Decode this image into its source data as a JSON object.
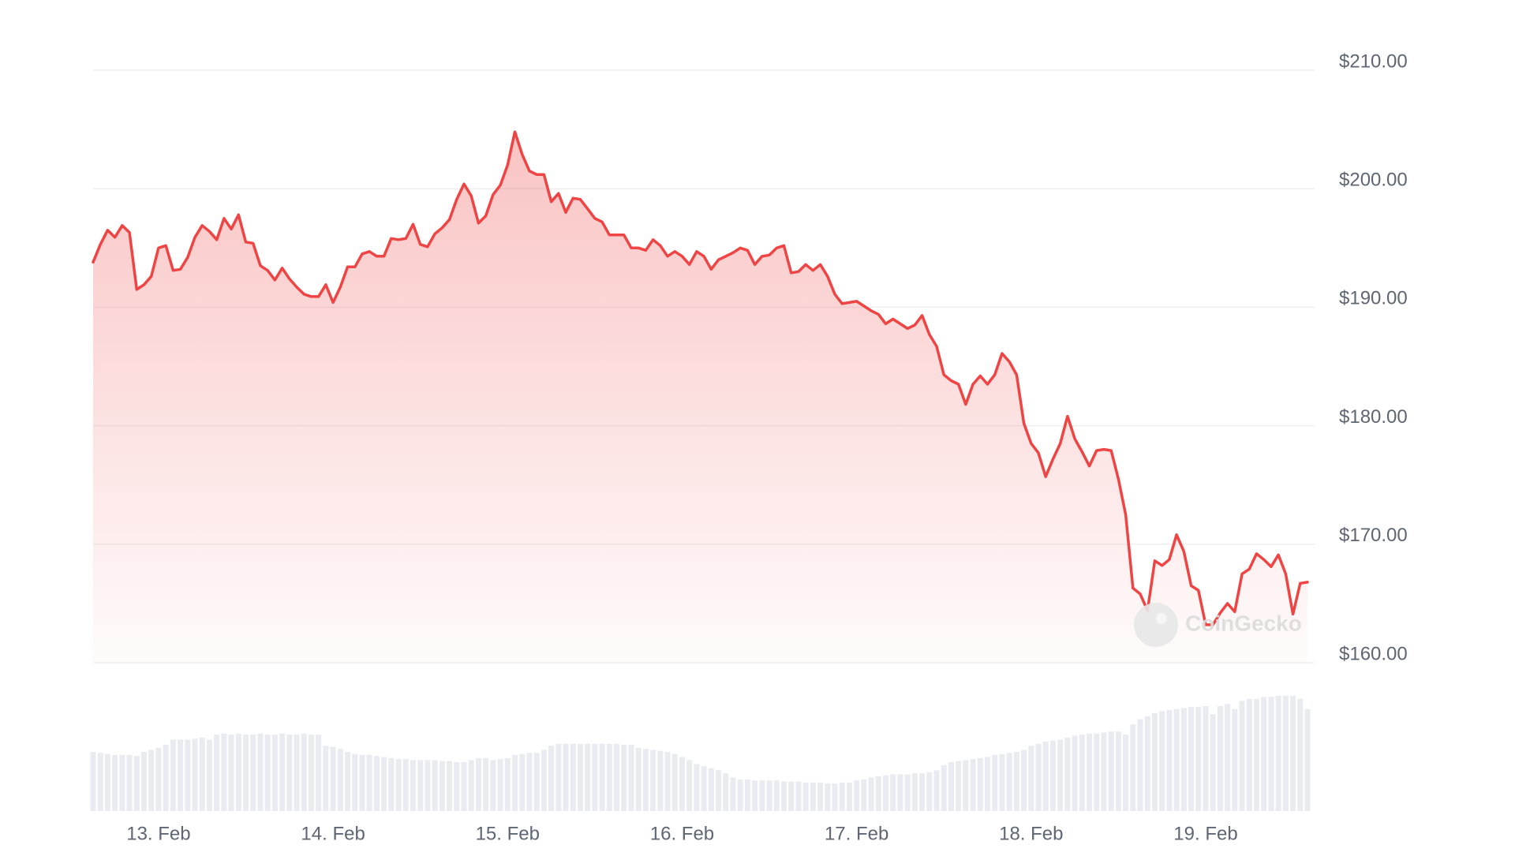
{
  "chart_data": {
    "type": "area",
    "watermark": "CoinGecko",
    "color": "#ef4444",
    "grid": true,
    "xlim": [
      -9,
      158
    ],
    "xticks": [
      {
        "value": 0,
        "label": "13. Feb"
      },
      {
        "value": 24,
        "label": "14. Feb"
      },
      {
        "value": 48,
        "label": "15. Feb"
      },
      {
        "value": 72,
        "label": "16. Feb"
      },
      {
        "value": 96,
        "label": "17. Feb"
      },
      {
        "value": 120,
        "label": "18. Feb"
      },
      {
        "value": 144,
        "label": "19. Feb"
      }
    ],
    "ylim": [
      160,
      210
    ],
    "yticks": [
      {
        "value": 160,
        "label": "$160.00"
      },
      {
        "value": 170,
        "label": "$170.00"
      },
      {
        "value": 180,
        "label": "$180.00"
      },
      {
        "value": 190,
        "label": "$190.00"
      },
      {
        "value": 200,
        "label": "$200.00"
      },
      {
        "value": 210,
        "label": "$210.00"
      }
    ],
    "x": [
      -9,
      -8,
      -7,
      -6,
      -5,
      -4,
      -3,
      -2,
      -1,
      0,
      1,
      2,
      3,
      4,
      5,
      6,
      7,
      8,
      9,
      10,
      11,
      12,
      13,
      14,
      15,
      16,
      17,
      18,
      19,
      20,
      21,
      22,
      23,
      24,
      25,
      26,
      27,
      28,
      29,
      30,
      31,
      32,
      33,
      34,
      35,
      36,
      37,
      38,
      39,
      40,
      41,
      42,
      43,
      44,
      45,
      46,
      47,
      48,
      49,
      50,
      51,
      52,
      53,
      54,
      55,
      56,
      57,
      58,
      59,
      60,
      61,
      62,
      63,
      64,
      65,
      66,
      67,
      68,
      69,
      70,
      71,
      72,
      73,
      74,
      75,
      76,
      77,
      78,
      79,
      80,
      81,
      82,
      83,
      84,
      85,
      86,
      87,
      88,
      89,
      90,
      91,
      92,
      93,
      94,
      95,
      96,
      97,
      98,
      99,
      100,
      101,
      102,
      103,
      104,
      105,
      106,
      107,
      108,
      109,
      110,
      111,
      112,
      113,
      114,
      115,
      116,
      117,
      118,
      119,
      120,
      121,
      122,
      123,
      124,
      125,
      126,
      127,
      128,
      129,
      130,
      131,
      132,
      133,
      134,
      135,
      136,
      137,
      138,
      139,
      140,
      141,
      142,
      143,
      144,
      145,
      146,
      147,
      148,
      149,
      150,
      151,
      152,
      153,
      154,
      155,
      156,
      157,
      158
    ],
    "values": [
      193.8,
      195.3,
      196.5,
      195.9,
      196.9,
      196.3,
      191.5,
      191.9,
      192.6,
      195.0,
      195.2,
      193.1,
      193.2,
      194.2,
      195.9,
      196.9,
      196.4,
      195.7,
      197.5,
      196.6,
      197.8,
      195.5,
      195.4,
      193.5,
      193.1,
      192.3,
      193.3,
      192.4,
      191.7,
      191.1,
      190.9,
      190.9,
      191.9,
      190.4,
      191.7,
      193.4,
      193.4,
      194.5,
      194.7,
      194.3,
      194.3,
      195.8,
      195.7,
      195.8,
      197.0,
      195.3,
      195.1,
      196.2,
      196.7,
      197.4,
      199.1,
      200.4,
      199.4,
      197.1,
      197.7,
      199.5,
      200.3,
      202.0,
      204.8,
      202.9,
      201.5,
      201.2,
      201.2,
      198.9,
      199.6,
      198.0,
      199.2,
      199.1,
      198.3,
      197.5,
      197.2,
      196.1,
      196.1,
      196.1,
      195.0,
      195.0,
      194.8,
      195.7,
      195.2,
      194.3,
      194.7,
      194.3,
      193.6,
      194.7,
      194.3,
      193.2,
      194.0,
      194.3,
      194.6,
      195.0,
      194.8,
      193.6,
      194.3,
      194.4,
      195.0,
      195.2,
      192.9,
      193.0,
      193.6,
      193.1,
      193.6,
      192.6,
      191.1,
      190.3,
      190.4,
      190.5,
      190.1,
      189.7,
      189.4,
      188.6,
      189.0,
      188.6,
      188.2,
      188.5,
      189.3,
      187.7,
      186.7,
      184.3,
      183.8,
      183.5,
      181.8,
      183.5,
      184.2,
      183.5,
      184.3,
      186.1,
      185.4,
      184.3,
      180.2,
      178.5,
      177.7,
      175.7,
      177.2,
      178.5,
      180.8,
      178.9,
      177.8,
      176.6,
      177.9,
      178.0,
      177.9,
      175.5,
      172.5,
      166.3,
      165.8,
      164.4,
      168.6,
      168.2,
      168.7,
      170.8,
      169.4,
      166.5,
      166.1,
      163.2,
      163.2,
      164.2,
      165.0,
      164.3,
      167.5,
      167.9,
      169.2,
      168.7,
      168.1,
      169.1,
      167.5,
      164.1,
      166.7,
      166.8
    ],
    "volume": {
      "color": "#e9ebf0",
      "values": [
        58,
        57,
        56,
        55,
        55,
        55,
        54,
        58,
        60,
        62,
        65,
        70,
        70,
        70,
        71,
        72,
        70,
        75,
        76,
        75,
        76,
        75,
        75,
        76,
        75,
        75,
        76,
        75,
        75,
        76,
        75,
        75,
        64,
        63,
        61,
        58,
        56,
        55,
        55,
        54,
        53,
        52,
        51,
        51,
        50,
        50,
        50,
        50,
        49,
        49,
        48,
        48,
        50,
        52,
        52,
        50,
        51,
        52,
        55,
        56,
        57,
        57,
        60,
        64,
        66,
        66,
        66,
        66,
        66,
        66,
        66,
        66,
        66,
        65,
        65,
        62,
        61,
        60,
        59,
        58,
        56,
        53,
        50,
        46,
        44,
        42,
        40,
        37,
        33,
        31,
        31,
        30,
        30,
        30,
        30,
        29,
        29,
        29,
        28,
        28,
        28,
        27,
        27,
        28,
        28,
        30,
        31,
        33,
        34,
        35,
        36,
        36,
        36,
        37,
        37,
        38,
        40,
        45,
        48,
        49,
        50,
        51,
        52,
        53,
        55,
        56,
        57,
        58,
        60,
        64,
        66,
        68,
        69,
        70,
        72,
        74,
        75,
        76,
        76,
        77,
        78,
        78,
        75,
        85,
        90,
        93,
        96,
        98,
        99,
        100,
        101,
        102,
        102,
        103,
        95,
        103,
        105,
        100,
        108,
        110,
        110,
        112,
        112,
        113,
        113,
        113,
        110,
        100
      ]
    }
  }
}
